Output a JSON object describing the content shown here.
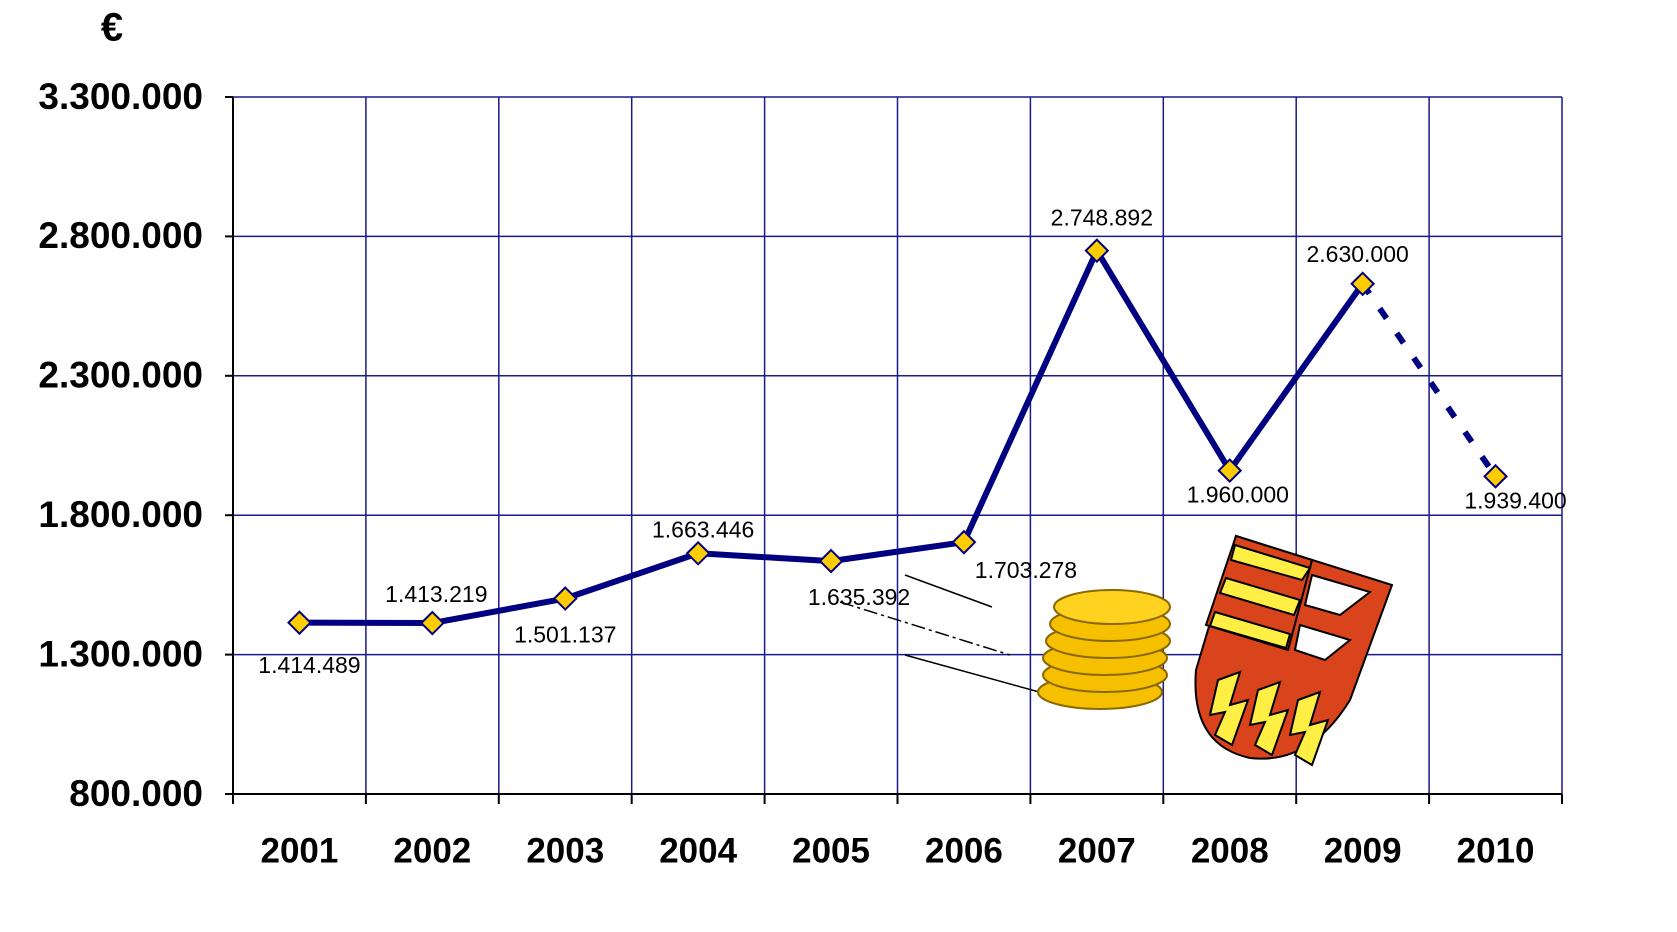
{
  "chart_data": {
    "type": "line",
    "y_label": "€",
    "categories": [
      "2001",
      "2002",
      "2003",
      "2004",
      "2005",
      "2006",
      "2007",
      "2008",
      "2009",
      "2010"
    ],
    "series": [
      {
        "color": "#000080",
        "marker_color": "#ffcc00",
        "values": [
          1414489,
          1413219,
          1501137,
          1663446,
          1635392,
          1703278,
          2748892,
          1960000,
          2630000,
          1939400
        ],
        "value_labels": [
          "1.414.489",
          "1.413.219",
          "1.501.137",
          "1.663.446",
          "1.635.392",
          "1.703.278",
          "2.748.892",
          "1.960.000",
          "2.630.000",
          "1.939.400"
        ],
        "dashed_from": "2009"
      }
    ],
    "ylim": [
      800000,
      3300000
    ],
    "yticks": [
      {
        "value": 800000,
        "label": "800.000"
      },
      {
        "value": 1300000,
        "label": "1.300.000"
      },
      {
        "value": 1800000,
        "label": "1.800.000"
      },
      {
        "value": 2300000,
        "label": "2.300.000"
      },
      {
        "value": 2800000,
        "label": "2.800.000"
      },
      {
        "value": 3300000,
        "label": "3.300.000"
      }
    ],
    "grid": true,
    "grid_color": "#1a1a8c"
  }
}
